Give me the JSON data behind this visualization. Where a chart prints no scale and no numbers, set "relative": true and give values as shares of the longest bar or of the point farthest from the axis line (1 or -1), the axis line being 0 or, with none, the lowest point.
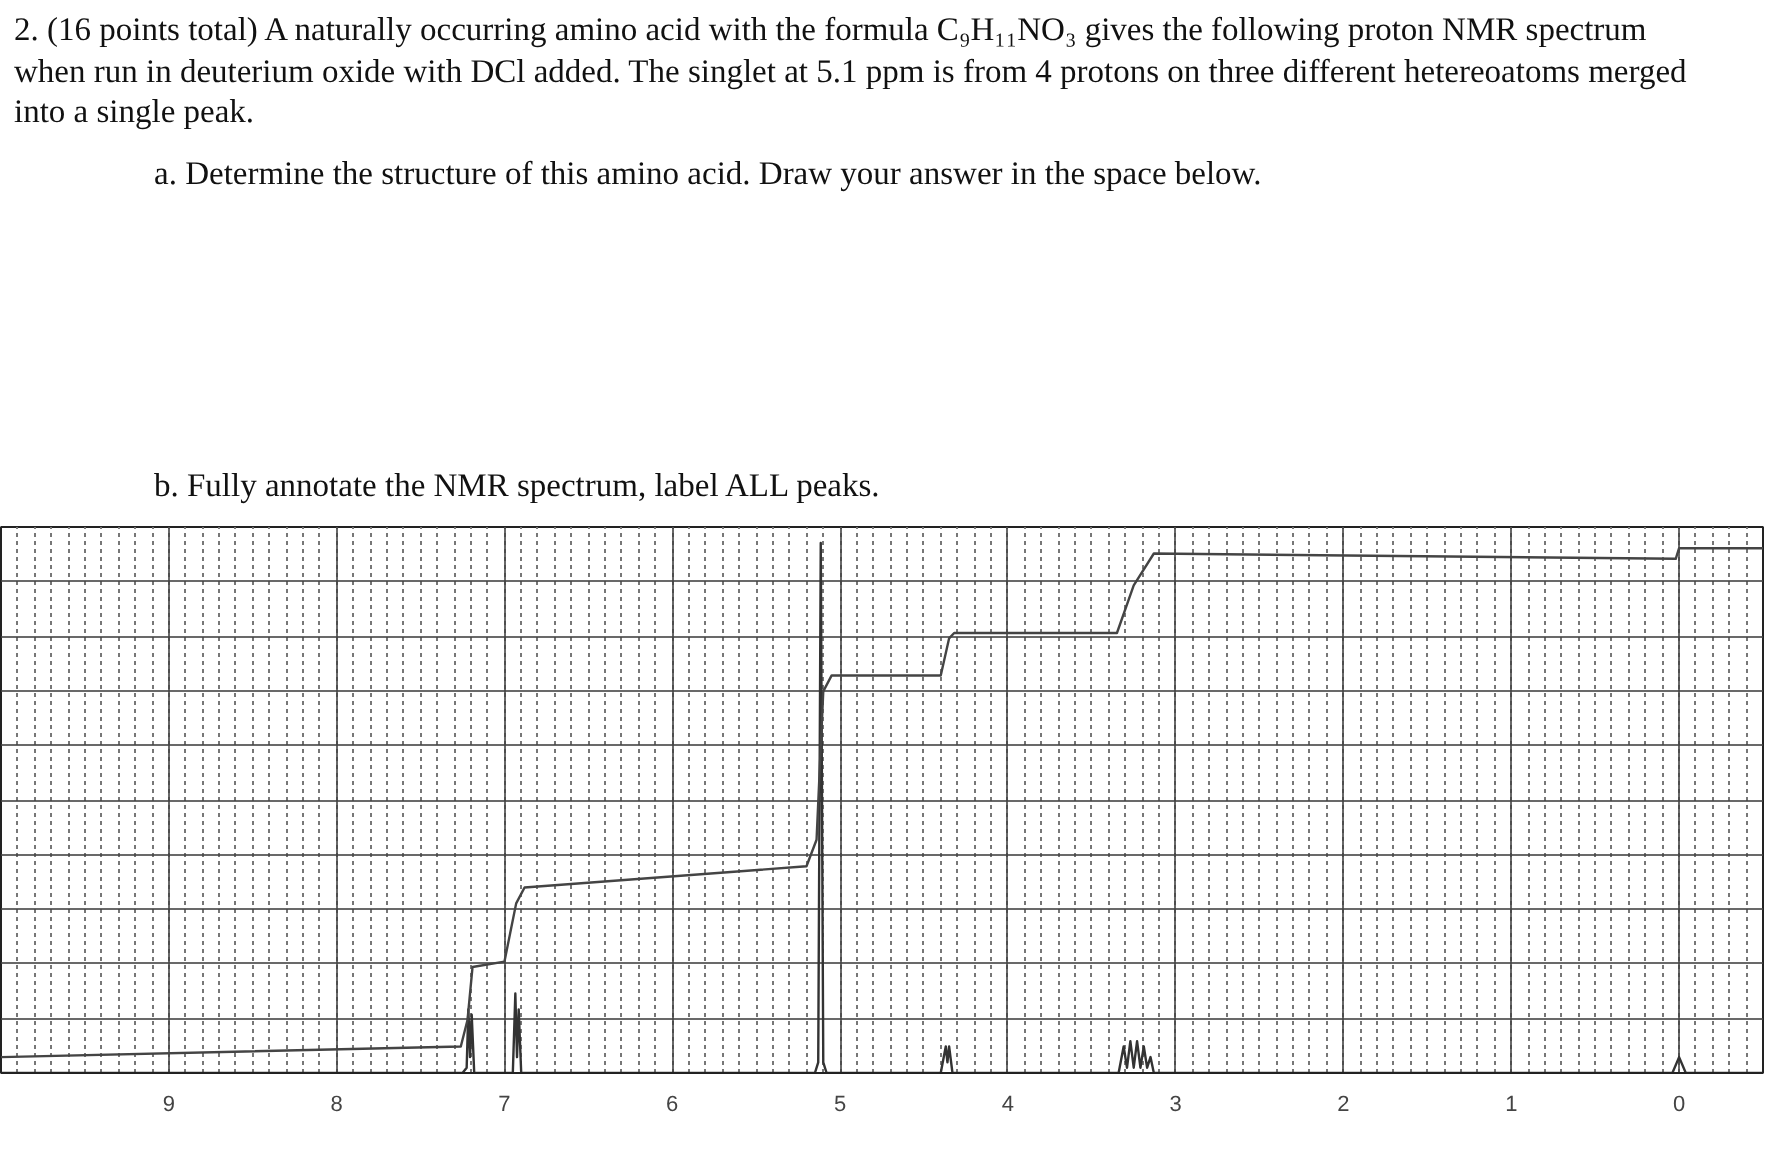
{
  "chart_data": {
    "type": "line",
    "relative": true,
    "title": "2. (16 points total) A naturally occurring amino acid with the formula C₉H₁₁NO₃ gives the following proton NMR spectrum when run in deuterium oxide with DCl added.  The singlet at 5.1 ppm is from 4 protons on three different hetereoatoms merged into a single peak.",
    "annotations": [
      "a.   Determine the structure of this amino acid.  Draw your answer in the space below.",
      "b.   Fully annotate the NMR spectrum, label ALL peaks."
    ],
    "xlim": [
      10,
      -0.5
    ],
    "xticks": [
      9,
      8,
      7,
      6,
      5,
      4,
      3,
      2,
      1,
      0
    ],
    "grid": true,
    "series": [
      {
        "color": "#333333",
        "x": [
          10,
          7.25,
          7.225,
          7.215,
          7.205,
          7.195,
          7.18,
          6.95,
          6.935,
          6.925,
          6.915,
          6.9,
          5.15,
          5.13,
          5.115,
          5.1,
          5.08,
          4.4,
          4.37,
          4.36,
          4.35,
          4.33,
          3.34,
          3.31,
          3.29,
          3.27,
          3.25,
          3.23,
          3.21,
          3.19,
          3.17,
          3.15,
          3.13,
          0.04,
          0.0,
          -0.04,
          -0.5
        ],
        "values": [
          0,
          0,
          0.01,
          0.12,
          0.03,
          0.11,
          0,
          0,
          0.15,
          0.03,
          0.12,
          0,
          0,
          0.02,
          1.0,
          0.02,
          0,
          0,
          0.05,
          0.02,
          0.05,
          0,
          0,
          0.05,
          0.01,
          0.06,
          0.01,
          0.06,
          0.01,
          0.05,
          0.01,
          0.03,
          0,
          0,
          0.03,
          0,
          0
        ]
      },
      {
        "color": "#444444",
        "x": [
          10,
          7.26,
          7.22,
          7.19,
          7.0,
          6.93,
          6.88,
          5.2,
          5.14,
          5.1,
          5.05,
          4.4,
          4.35,
          4.32,
          3.35,
          3.25,
          3.13,
          0.02,
          0.0,
          -0.5
        ],
        "values": [
          0.03,
          0.05,
          0.1,
          0.2,
          0.21,
          0.32,
          0.35,
          0.39,
          0.44,
          0.72,
          0.75,
          0.75,
          0.82,
          0.83,
          0.83,
          0.92,
          0.98,
          0.97,
          0.99,
          0.99
        ]
      }
    ]
  }
}
